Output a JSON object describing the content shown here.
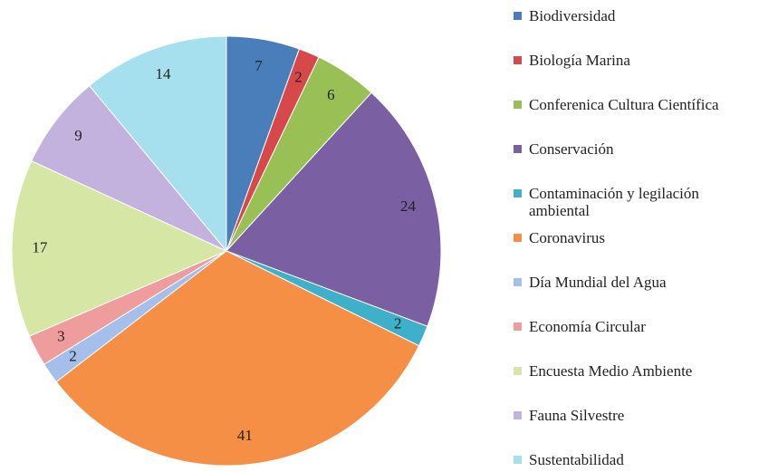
{
  "chart_data": {
    "type": "pie",
    "categories": [
      "Biodiversidad",
      "Biología Marina",
      "Conferenica Cultura Científica",
      "Conservación",
      "Contaminación y legilación ambiental",
      "Coronavirus",
      "Día Mundial del Agua",
      "Economía Circular",
      "Encuesta Medio Ambiente",
      "Fauna Silvestre",
      "Sustentabilidad"
    ],
    "values": [
      7,
      2,
      6,
      24,
      2,
      41,
      2,
      3,
      17,
      9,
      14
    ],
    "colors": [
      "#4a7ebb",
      "#d6484a",
      "#99c055",
      "#7a5fa3",
      "#3fb0c9",
      "#f48f45",
      "#a3bfea",
      "#ee9c9c",
      "#d5e6a5",
      "#c4b2de",
      "#a6dfee"
    ],
    "legend": "right"
  }
}
